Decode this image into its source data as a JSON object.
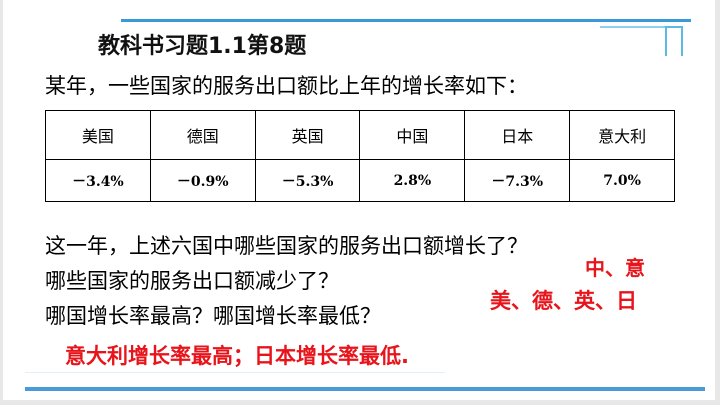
{
  "title": "教科书习题1.1第8题",
  "intro": "某年，一些国家的服务出口额比上年的增长率如下：",
  "table": {
    "headers": [
      "美国",
      "德国",
      "英国",
      "中国",
      "日本",
      "意大利"
    ],
    "values": [
      "－3.4%",
      "－0.9%",
      "－5.3%",
      "2.8%",
      "－7.3%",
      "7.0%"
    ]
  },
  "questions": [
    "这一年，上述六国中哪些国家的服务出口额增长了？",
    "哪些国家的服务出口额减少了？",
    "哪国增长率最高？哪国增长率最低？"
  ],
  "answers": {
    "increased": "中、意",
    "decreased": "美、德、英、日",
    "extremes": "意大利增长率最高；日本增长率最低."
  },
  "colors": {
    "answer": "#e8141b",
    "accent": "#3a9ad9"
  }
}
